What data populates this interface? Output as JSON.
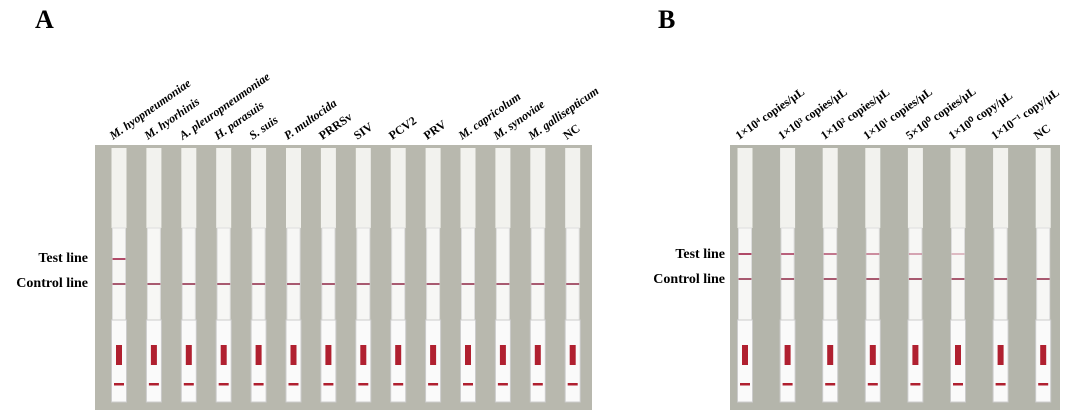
{
  "panels": [
    {
      "label": "A",
      "test_line_label": "Test line",
      "control_line_label": "Control line",
      "strips": [
        {
          "label": "M. hyopneumoniae",
          "italic": true,
          "test_line": true
        },
        {
          "label": "M. hyorhinis",
          "italic": true,
          "test_line": false
        },
        {
          "label": "A. pleuropneumoniae",
          "italic": true,
          "test_line": false
        },
        {
          "label": "H. parasuis",
          "italic": true,
          "test_line": false
        },
        {
          "label": "S. suis",
          "italic": true,
          "test_line": false
        },
        {
          "label": "P. multocida",
          "italic": true,
          "test_line": false
        },
        {
          "label": "PRRSv",
          "italic": false,
          "test_line": false
        },
        {
          "label": "SIV",
          "italic": false,
          "test_line": false
        },
        {
          "label": "PCV2",
          "italic": false,
          "test_line": false
        },
        {
          "label": "PRV",
          "italic": false,
          "test_line": false
        },
        {
          "label": "M. capricolum",
          "italic": true,
          "test_line": false
        },
        {
          "label": "M. synoviae",
          "italic": true,
          "test_line": false
        },
        {
          "label": "M. gallisepticum",
          "italic": true,
          "test_line": false
        },
        {
          "label": "NC",
          "italic": false,
          "test_line": false
        }
      ]
    },
    {
      "label": "B",
      "test_line_label": "Test line",
      "control_line_label": "Control line",
      "strips": [
        {
          "label": "1×10⁴ copies/μL",
          "italic": false,
          "test_line": true
        },
        {
          "label": "1×10³ copies/μL",
          "italic": false,
          "test_line": true
        },
        {
          "label": "1×10² copies/μL",
          "italic": false,
          "test_line": true
        },
        {
          "label": "1×10¹ copies/μL",
          "italic": false,
          "test_line": true
        },
        {
          "label": "5×10⁰ copies/μL",
          "italic": false,
          "test_line": true
        },
        {
          "label": "1×10⁰ copy/μL",
          "italic": false,
          "test_line": true
        },
        {
          "label": "1×10⁻¹ copy/μL",
          "italic": false,
          "test_line": false
        },
        {
          "label": "NC",
          "italic": false,
          "test_line": false
        }
      ]
    }
  ]
}
